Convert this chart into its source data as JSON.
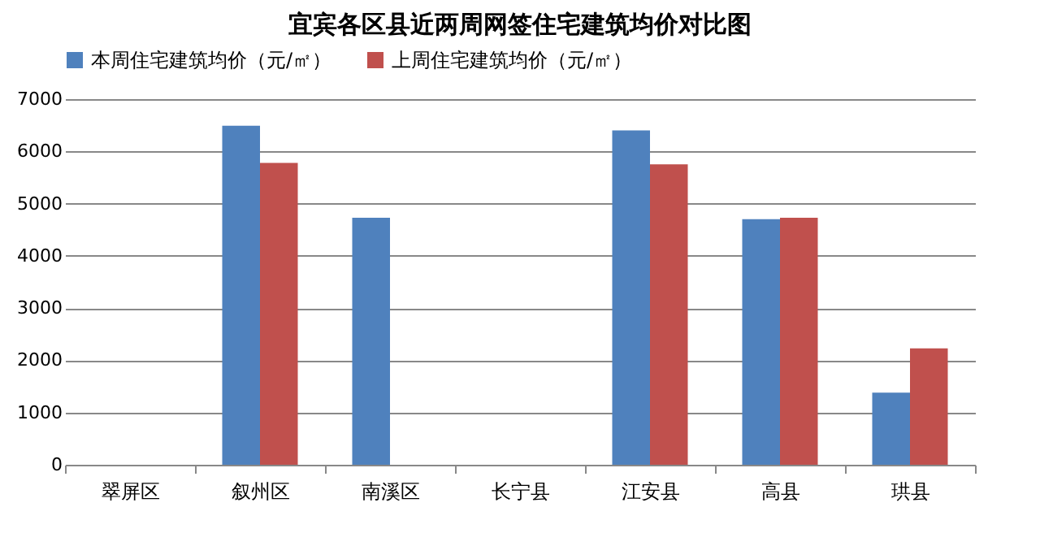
{
  "chart_data": {
    "type": "bar",
    "title": "宜宾各区县近两周网签住宅建筑均价对比图",
    "categories": [
      "翠屏区",
      "叙州区",
      "南溪区",
      "长宁县",
      "江安县",
      "高县",
      "珙县"
    ],
    "series": [
      {
        "name": "本周住宅建筑均价（元/㎡）",
        "color": "#4f81bd",
        "values": [
          null,
          6490,
          4730,
          null,
          6400,
          4700,
          1380
        ]
      },
      {
        "name": "上周住宅建筑均价（元/㎡）",
        "color": "#c0504d",
        "values": [
          null,
          5780,
          null,
          null,
          5750,
          4730,
          2230
        ]
      }
    ],
    "ylim": [
      0,
      7000
    ],
    "yticks": [
      0,
      1000,
      2000,
      3000,
      4000,
      5000,
      6000,
      7000
    ],
    "grid": "y",
    "legend": "top"
  }
}
